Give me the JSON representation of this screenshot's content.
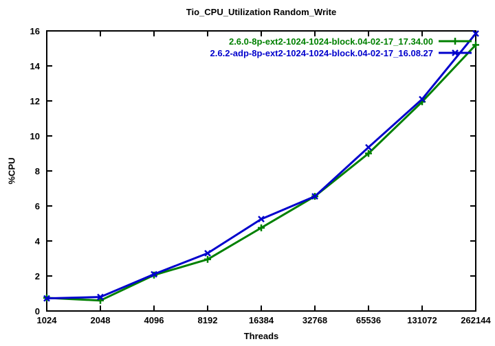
{
  "page": {
    "background": "#ffffff"
  },
  "chart_data": {
    "type": "line",
    "title": "Tio_CPU_Utilization Random_Write",
    "xlabel": "Threads",
    "ylabel": "%CPU",
    "x_scale": "log2",
    "x": [
      1024,
      2048,
      4096,
      8192,
      16384,
      32768,
      65536,
      131072,
      262144
    ],
    "x_tick_labels": [
      "1024",
      "2048",
      "4096",
      "8192",
      "16384",
      "32768",
      "65536",
      "131072",
      "262144"
    ],
    "ylim": [
      0,
      16
    ],
    "y_ticks": [
      0,
      2,
      4,
      6,
      8,
      10,
      12,
      14,
      16
    ],
    "grid": false,
    "legend_position": "top-right-inside",
    "axis_color": "#000000",
    "series": [
      {
        "name": "2.6.0-8p-ext2-1024-1024-block.04-02-17_17.34.00",
        "color": "#008000",
        "marker": "plus",
        "values": [
          0.75,
          0.6,
          2.05,
          2.95,
          4.75,
          6.55,
          9.0,
          11.95,
          15.2
        ]
      },
      {
        "name": "2.6.2-adp-8p-ext2-1024-1024-block.04-02-17_16.08.27",
        "color": "#0000cc",
        "marker": "x",
        "values": [
          0.72,
          0.8,
          2.1,
          3.3,
          5.25,
          6.55,
          9.35,
          12.1,
          15.85
        ]
      }
    ]
  }
}
